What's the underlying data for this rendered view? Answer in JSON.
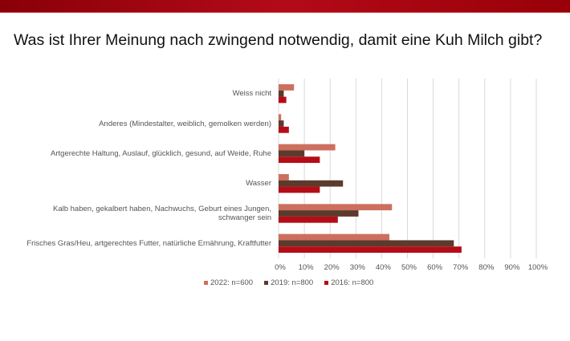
{
  "title": "Was ist Ihrer Meinung nach zwingend notwendig, damit eine Kuh Milch gibt?",
  "chart_data": {
    "type": "bar",
    "orientation": "horizontal",
    "categories": [
      "Weiss nicht",
      "Anderes (Mindestalter, weiblich, gemolken werden)",
      "Artgerechte Haltung, Auslauf, glücklich, gesund, auf Weide, Ruhe",
      "Wasser",
      "Kalb haben, gekalbert haben, Nachwuchs, Geburt eines Jungen, schwanger sein",
      "Frisches Gras/Heu, artgerechtes Futter, natürliche Ernährung, Kraftfutter"
    ],
    "series": [
      {
        "name": "2022: n=600",
        "color": "#cd6f5e",
        "values": [
          6,
          1,
          22,
          4,
          44,
          43
        ]
      },
      {
        "name": "2019: n=800",
        "color": "#5c3a2c",
        "values": [
          2,
          2,
          10,
          25,
          31,
          68
        ]
      },
      {
        "name": "2016: n=800",
        "color": "#b50d18",
        "values": [
          3,
          4,
          16,
          16,
          23,
          71
        ]
      }
    ],
    "xlim": [
      0,
      100
    ],
    "xticks": [
      "0%",
      "10%",
      "20%",
      "30%",
      "40%",
      "50%",
      "60%",
      "70%",
      "80%",
      "90%",
      "100%"
    ],
    "grid": true,
    "legend_position": "bottom"
  }
}
